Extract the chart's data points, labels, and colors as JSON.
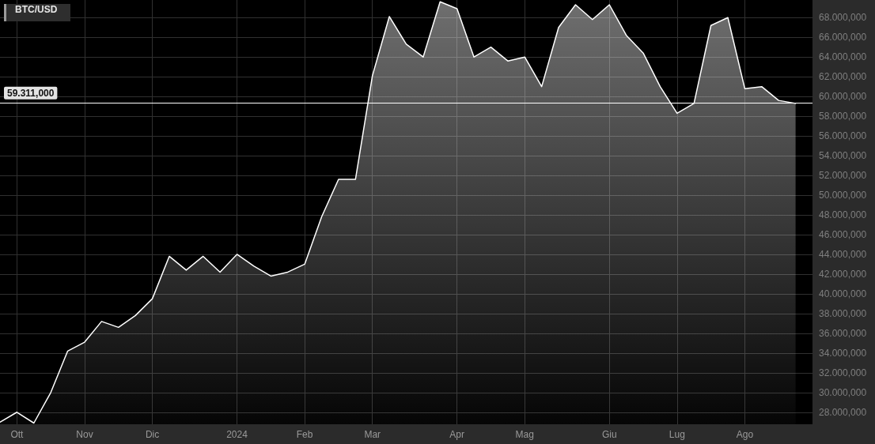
{
  "chart_data": {
    "type": "area",
    "title": "BTC/USD",
    "categories": [
      null,
      "Ott",
      null,
      null,
      null,
      "Nov",
      null,
      null,
      null,
      "Dic",
      null,
      null,
      null,
      null,
      "2024",
      null,
      null,
      null,
      "Feb",
      null,
      null,
      null,
      "Mar",
      null,
      null,
      null,
      null,
      "Apr",
      null,
      null,
      null,
      "Mag",
      null,
      null,
      null,
      null,
      "Giu",
      null,
      null,
      null,
      "Lug",
      null,
      null,
      null,
      "Ago",
      null,
      null,
      null
    ],
    "series": [
      {
        "color": "#ffffff",
        "values": [
          27000,
          28000,
          26900,
          30000,
          34200,
          35100,
          37200,
          36600,
          37800,
          39500,
          43800,
          42400,
          43800,
          42200,
          44000,
          42800,
          41800,
          42200,
          43000,
          47800,
          51600,
          51600,
          62100,
          68100,
          65300,
          64000,
          69600,
          68900,
          64000,
          65000,
          63600,
          64000,
          61000,
          67000,
          69300,
          67800,
          69300,
          66200,
          64400,
          61000,
          58300,
          59300,
          67200,
          68000,
          60800,
          61000,
          59600,
          59300
        ]
      }
    ],
    "ylim": [
      26780,
      69780
    ],
    "yticks": [
      {
        "value": 28000,
        "label": "28.000,000"
      },
      {
        "value": 30000,
        "label": "30.000,000"
      },
      {
        "value": 32000,
        "label": "32.000,000"
      },
      {
        "value": 34000,
        "label": "34.000,000"
      },
      {
        "value": 36000,
        "label": "36.000,000"
      },
      {
        "value": 38000,
        "label": "38.000,000"
      },
      {
        "value": 40000,
        "label": "40.000,000"
      },
      {
        "value": 42000,
        "label": "42.000,000"
      },
      {
        "value": 44000,
        "label": "44.000,000"
      },
      {
        "value": 46000,
        "label": "46.000,000"
      },
      {
        "value": 48000,
        "label": "48.000,000"
      },
      {
        "value": 50000,
        "label": "50.000,000"
      },
      {
        "value": 52000,
        "label": "52.000,000"
      },
      {
        "value": 54000,
        "label": "54.000,000"
      },
      {
        "value": 56000,
        "label": "56.000,000"
      },
      {
        "value": 58000,
        "label": "58.000,000"
      },
      {
        "value": 60000,
        "label": "60.000,000"
      },
      {
        "value": 62000,
        "label": "62.000,000"
      },
      {
        "value": 64000,
        "label": "64.000,000"
      },
      {
        "value": 66000,
        "label": "66.000,000"
      },
      {
        "value": 68000,
        "label": "68.000,000"
      }
    ],
    "ref_lines": [
      {
        "axis": "y",
        "value": 59311,
        "label": "59.311,000",
        "color": "#ffffff"
      }
    ],
    "grid": true
  }
}
